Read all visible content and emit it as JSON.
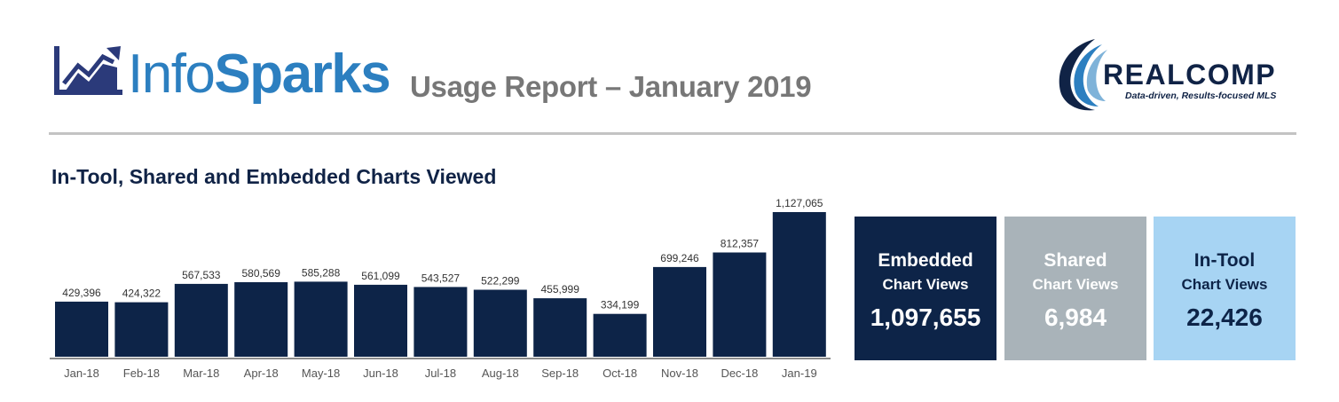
{
  "header": {
    "brand_info": "Info",
    "brand_sparks": "Sparks",
    "report_title": "Usage Report – January 2019",
    "realcomp_name": "REALCOMP",
    "realcomp_tagline": "Data-driven, Results-focused MLS"
  },
  "section_title": "In-Tool, Shared and Embedded Charts Viewed",
  "chart_data": {
    "type": "bar",
    "categories": [
      "Jan-18",
      "Feb-18",
      "Mar-18",
      "Apr-18",
      "May-18",
      "Jun-18",
      "Jul-18",
      "Aug-18",
      "Sep-18",
      "Oct-18",
      "Nov-18",
      "Dec-18",
      "Jan-19"
    ],
    "values": [
      429396,
      424322,
      567533,
      580569,
      585288,
      561099,
      543527,
      522299,
      455999,
      334199,
      699246,
      812357,
      1127065
    ],
    "data_labels": [
      "429,396",
      "424,322",
      "567,533",
      "580,569",
      "585,288",
      "561,099",
      "543,527",
      "522,299",
      "455,999",
      "334,199",
      "699,246",
      "812,357",
      "1,127,065"
    ],
    "title": "In-Tool, Shared and Embedded Charts Viewed",
    "xlabel": "",
    "ylabel": "",
    "ylim": [
      0,
      1127065
    ],
    "grid": false,
    "legend": "none",
    "bar_color": "#0d2448"
  },
  "stats": [
    {
      "line1": "Embedded",
      "line2": "Chart Views",
      "value": "1,097,655",
      "bg": "#0d2448",
      "fg": "#ffffff"
    },
    {
      "line1": "Shared",
      "line2": "Chart Views",
      "value": "6,984",
      "bg": "#a9b3b9",
      "fg": "#ffffff"
    },
    {
      "line1": "In-Tool",
      "line2": "Chart Views",
      "value": "22,426",
      "bg": "#a7d4f3",
      "fg": "#0d2448"
    }
  ],
  "colors": {
    "brand_blue": "#2c7fc0",
    "navy": "#0d2448",
    "title_gray": "#777777",
    "divider_gray": "#c3c3c3"
  }
}
